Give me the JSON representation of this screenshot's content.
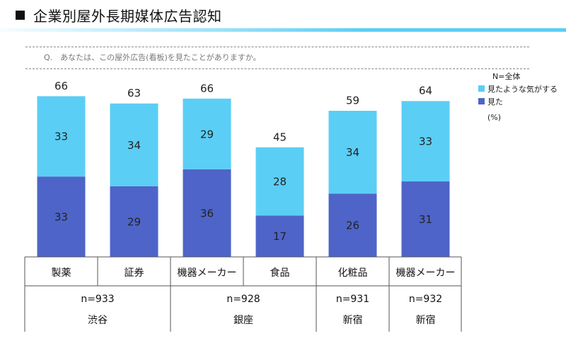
{
  "header": {
    "title": "企業別屋外長期媒体広告認知"
  },
  "question": "Q.　あなたは、この屋外広告(看板)を見たことがありますか。",
  "n_total_label": "N=全体",
  "unit_label": "(%)",
  "colors": {
    "saw": "#4e64c8",
    "maybe_saw": "#5bcef5",
    "title_bar": "#5bcef5"
  },
  "chart_data": {
    "type": "bar",
    "stacked": true,
    "categories": [
      "製薬",
      "証券",
      "機器メーカー",
      "食品",
      "化粧品",
      "機器メーカー"
    ],
    "series": [
      {
        "name": "見た",
        "values": [
          33,
          29,
          36,
          17,
          26,
          31
        ]
      },
      {
        "name": "見たような気がする",
        "values": [
          33,
          34,
          29,
          28,
          34,
          33
        ]
      }
    ],
    "totals": [
      66,
      63,
      66,
      45,
      59,
      64
    ],
    "ylim": [
      0,
      70
    ],
    "legend_position": "top-right",
    "groups": [
      {
        "sample": "n=933",
        "location": "渋谷",
        "span": [
          0,
          1
        ]
      },
      {
        "sample": "n=928",
        "location": "銀座",
        "span": [
          2,
          3
        ]
      },
      {
        "sample": "n=931",
        "location": "新宿",
        "span": [
          4,
          4
        ]
      },
      {
        "sample": "n=932",
        "location": "新宿",
        "span": [
          5,
          5
        ]
      }
    ]
  }
}
